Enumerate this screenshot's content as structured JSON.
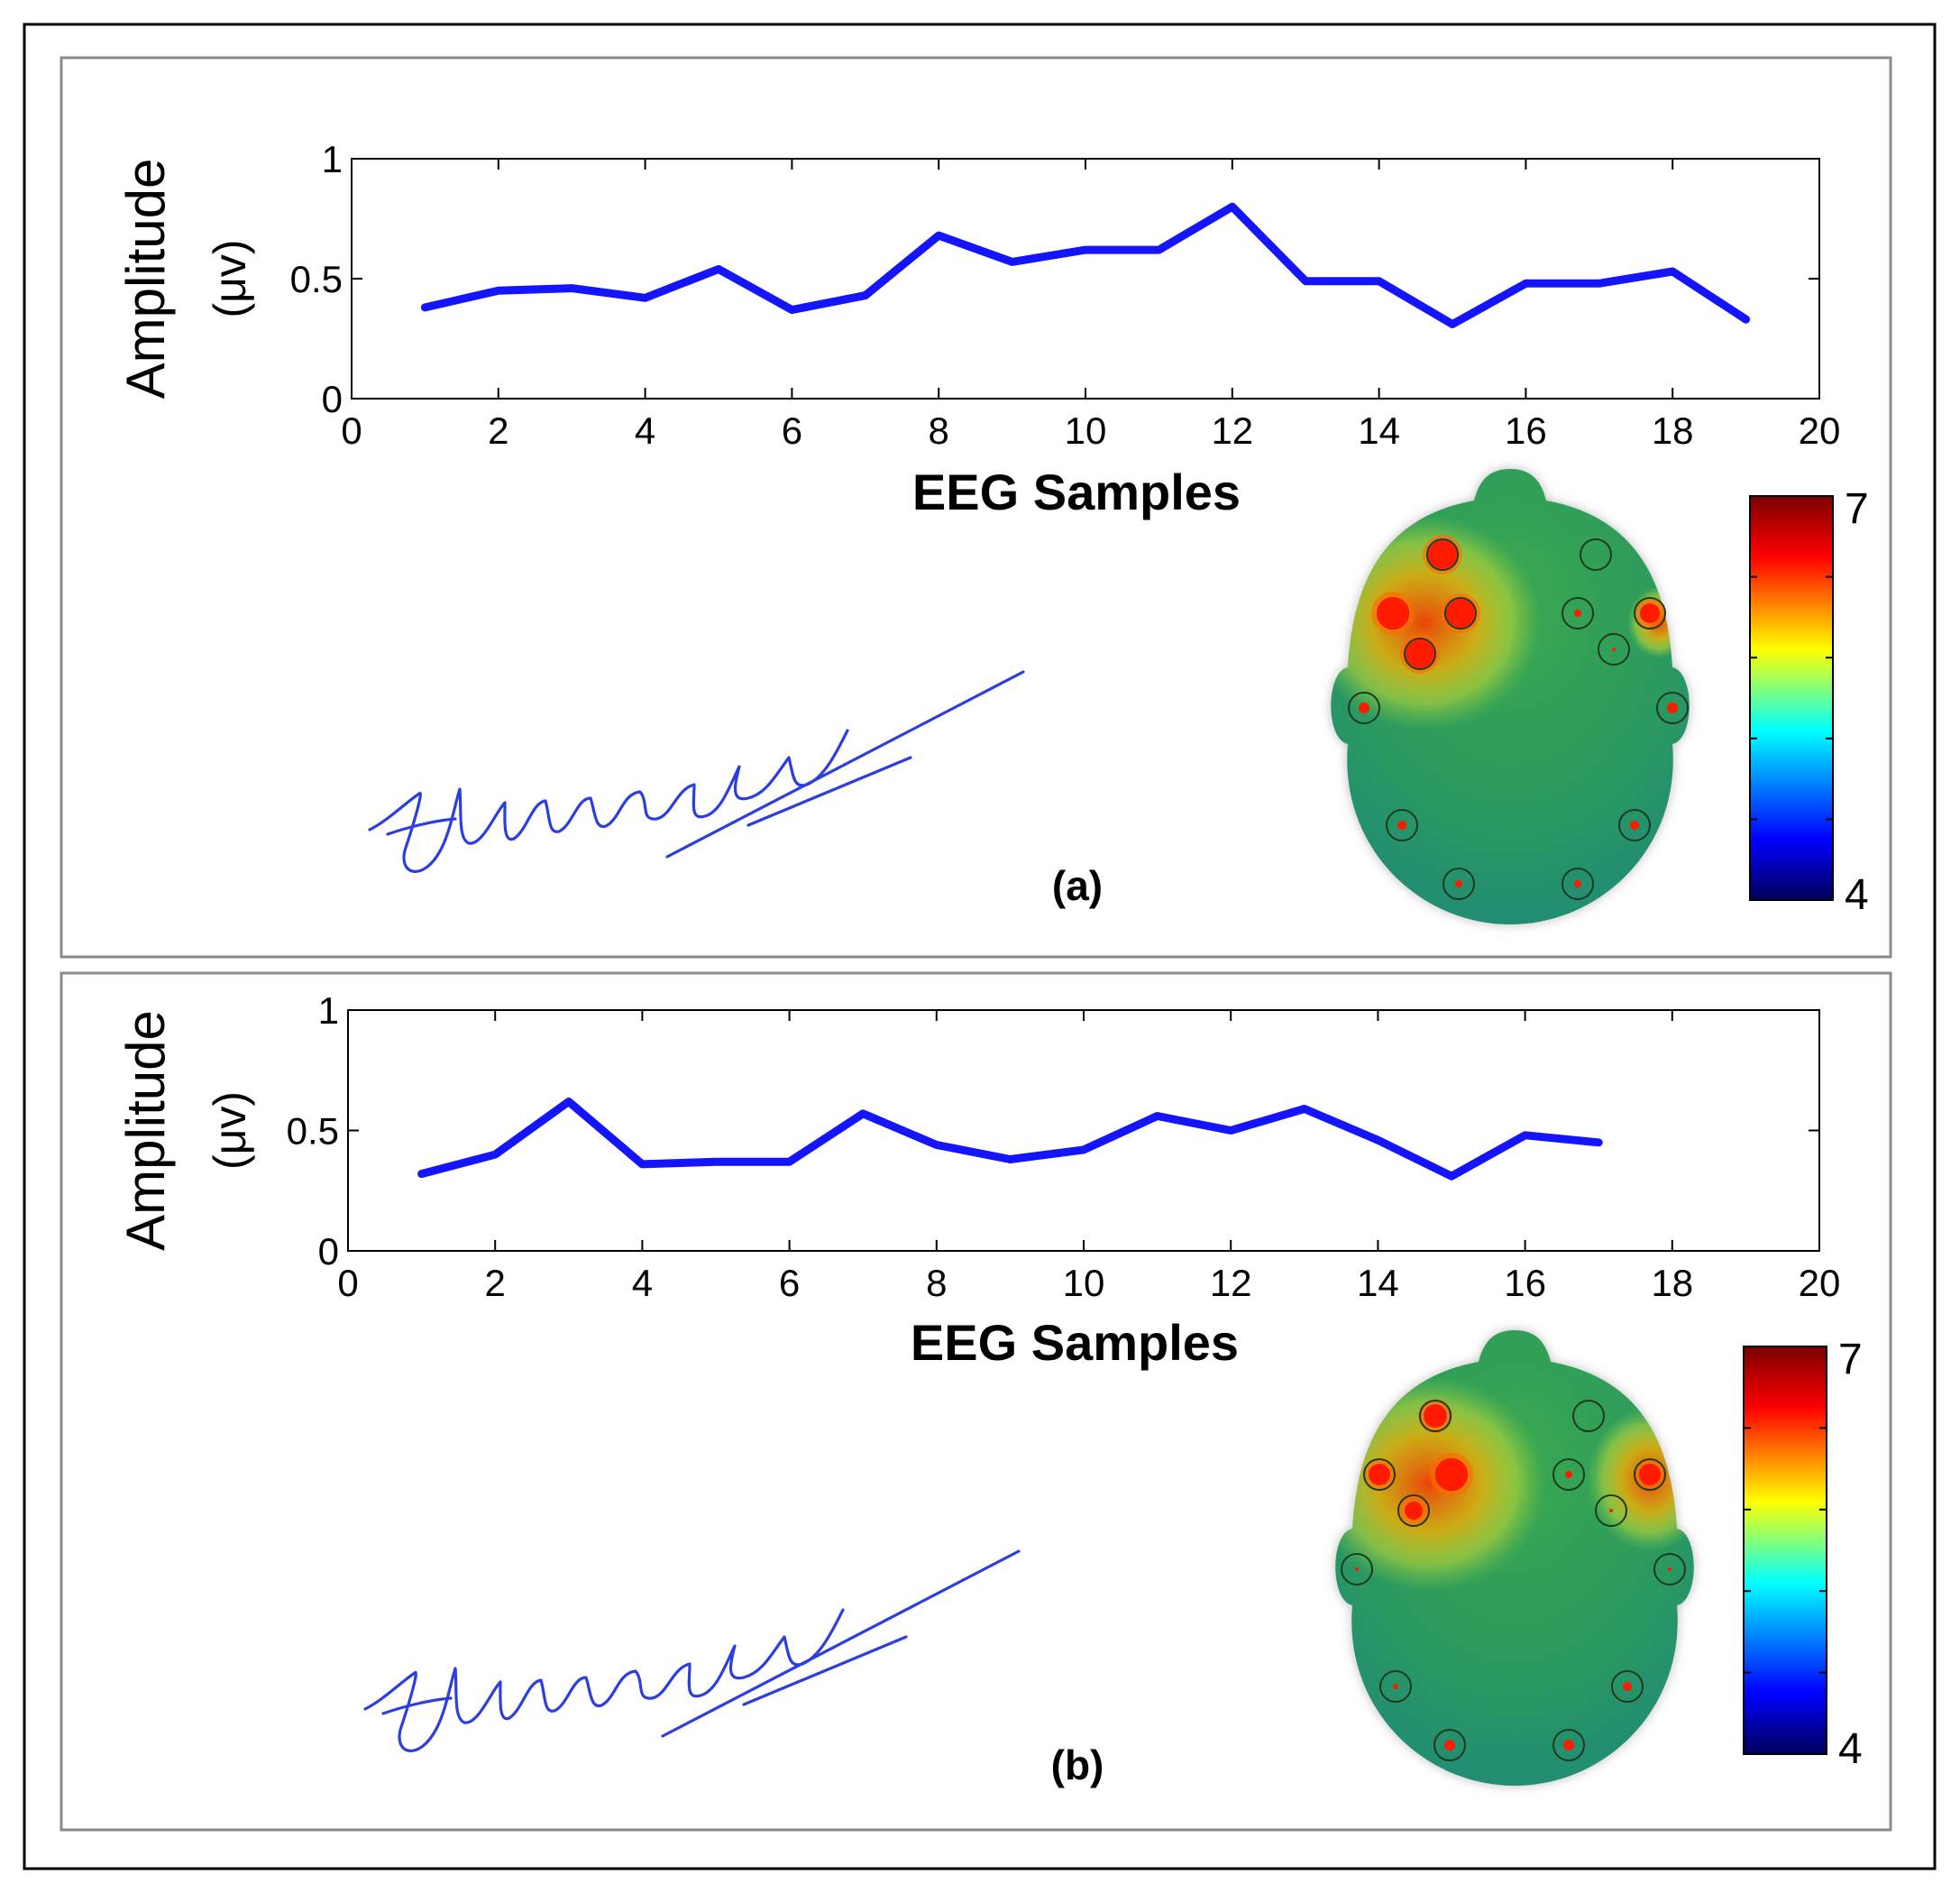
{
  "colors": {
    "line": "#1414ff",
    "signature": "#2b3fe0",
    "frame": "#000000",
    "panel_border": "#8a8a8a",
    "head_base": "#2f9a55",
    "electrode_hot": "#ff1a00",
    "colorbar": [
      "#00005a",
      "#0000ff",
      "#00ffff",
      "#ffff00",
      "#ff0000",
      "#7a0000"
    ]
  },
  "panels": [
    {
      "label": "(a)",
      "chart_data": {
        "type": "line",
        "title": "",
        "xlabel": "EEG Samples",
        "ylabel": "Amplitude",
        "ylabel_unit": "(μv)",
        "xlim": [
          0,
          20
        ],
        "ylim": [
          0,
          1
        ],
        "xticks": [
          "0",
          "2",
          "4",
          "6",
          "8",
          "10",
          "12",
          "14",
          "16",
          "18",
          "20"
        ],
        "yticks": [
          "0",
          "0.5",
          "1"
        ],
        "grid": false,
        "series": [
          {
            "x": [
              1,
              2,
              3,
              4,
              5,
              6,
              7,
              8,
              9,
              10,
              11,
              12,
              13,
              14,
              15,
              16,
              17,
              18,
              19
            ],
            "y": [
              0.38,
              0.45,
              0.46,
              0.42,
              0.54,
              0.37,
              0.43,
              0.68,
              0.57,
              0.62,
              0.62,
              0.8,
              0.49,
              0.49,
              0.31,
              0.48,
              0.48,
              0.53,
              0.33
            ]
          }
        ]
      },
      "topomap": {
        "colorbar_max": "7",
        "colorbar_min": "4",
        "hot_regions": [
          "left-frontal"
        ]
      }
    },
    {
      "label": "(b)",
      "chart_data": {
        "type": "line",
        "title": "",
        "xlabel": "EEG Samples",
        "ylabel": "Amplitude",
        "ylabel_unit": "(μv)",
        "xlim": [
          0,
          20
        ],
        "ylim": [
          0,
          1
        ],
        "xticks": [
          "0",
          "2",
          "4",
          "6",
          "8",
          "10",
          "12",
          "14",
          "16",
          "18",
          "20"
        ],
        "yticks": [
          "0",
          "0.5",
          "1"
        ],
        "grid": false,
        "series": [
          {
            "x": [
              1,
              2,
              3,
              4,
              5,
              6,
              7,
              8,
              9,
              10,
              11,
              12,
              13,
              14,
              15,
              16,
              17
            ],
            "y": [
              0.32,
              0.4,
              0.62,
              0.36,
              0.37,
              0.37,
              0.57,
              0.44,
              0.38,
              0.42,
              0.56,
              0.5,
              0.59,
              0.46,
              0.31,
              0.48,
              0.45
            ]
          }
        ]
      },
      "topomap": {
        "colorbar_max": "7",
        "colorbar_min": "4",
        "hot_regions": [
          "left-frontal",
          "right-frontal"
        ]
      }
    }
  ]
}
